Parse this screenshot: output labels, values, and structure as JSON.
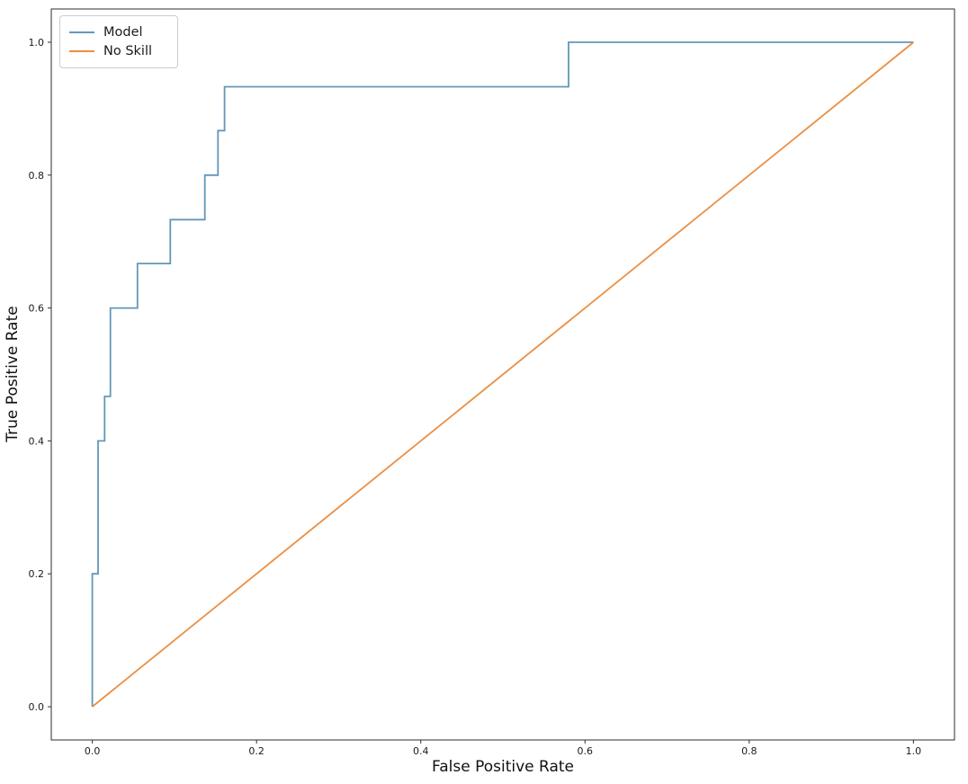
{
  "figure": {
    "background": "#ffffff",
    "spine_color": "#2e2e2e",
    "tick_color": "#2e2e2e",
    "tick_label_color": "#1a1a1a"
  },
  "chart_data": {
    "type": "line",
    "title": "",
    "xlabel": "False Positive Rate",
    "ylabel": "True Positive Rate",
    "xlim": [
      -0.05,
      1.05
    ],
    "ylim": [
      -0.05,
      1.05
    ],
    "grid": false,
    "xticks": {
      "values": [
        0.0,
        0.2,
        0.4,
        0.6,
        0.8,
        1.0
      ],
      "labels": [
        "0.0",
        "0.2",
        "0.4",
        "0.6",
        "0.8",
        "1.0"
      ]
    },
    "yticks": {
      "values": [
        0.0,
        0.2,
        0.4,
        0.6,
        0.8,
        1.0
      ],
      "labels": [
        "0.0",
        "0.2",
        "0.4",
        "0.6",
        "0.8",
        "1.0"
      ]
    },
    "legend": {
      "position": "upper-left"
    },
    "series": [
      {
        "name": "Model",
        "color": "#6397ba",
        "style": "step",
        "line_width": 1.8,
        "points": [
          [
            0.0,
            0.0
          ],
          [
            0.0,
            0.2
          ],
          [
            0.007,
            0.2
          ],
          [
            0.007,
            0.4
          ],
          [
            0.015,
            0.4
          ],
          [
            0.015,
            0.467
          ],
          [
            0.022,
            0.467
          ],
          [
            0.022,
            0.6
          ],
          [
            0.055,
            0.6
          ],
          [
            0.055,
            0.667
          ],
          [
            0.095,
            0.667
          ],
          [
            0.095,
            0.733
          ],
          [
            0.137,
            0.733
          ],
          [
            0.137,
            0.8
          ],
          [
            0.153,
            0.8
          ],
          [
            0.153,
            0.867
          ],
          [
            0.161,
            0.867
          ],
          [
            0.161,
            0.933
          ],
          [
            0.58,
            0.933
          ],
          [
            0.58,
            1.0
          ],
          [
            1.0,
            1.0
          ]
        ]
      },
      {
        "name": "No Skill",
        "color": "#ec8e41",
        "style": "line",
        "line_width": 1.8,
        "points": [
          [
            0.0,
            0.0
          ],
          [
            1.0,
            1.0
          ]
        ]
      }
    ]
  }
}
